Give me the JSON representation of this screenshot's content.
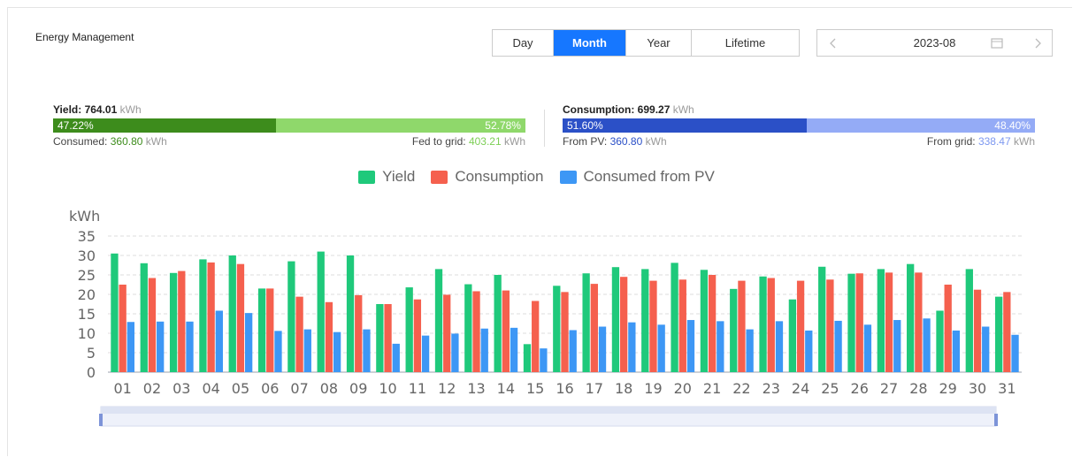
{
  "header": {
    "title": "Energy Management"
  },
  "tabs": [
    {
      "label": "Day"
    },
    {
      "label": "Month",
      "active": true
    },
    {
      "label": "Year"
    },
    {
      "label": "Lifetime"
    }
  ],
  "date": "2023-08",
  "yield": {
    "label": "Yield:",
    "value": "764.01",
    "unit": "kWh",
    "left_share": {
      "value": 47.22,
      "label": "47.22%"
    },
    "right_share": {
      "value": 52.78,
      "label": "52.78%"
    },
    "left": {
      "label": "Consumed:",
      "value": "360.80",
      "unit": "kWh"
    },
    "right": {
      "label": "Fed to grid:",
      "value": "403.21",
      "unit": "kWh"
    }
  },
  "consumption": {
    "label": "Consumption:",
    "value": "699.27",
    "unit": "kWh",
    "left_share": {
      "value": 51.6,
      "label": "51.60%"
    },
    "right_share": {
      "value": 48.4,
      "label": "48.40%"
    },
    "left": {
      "label": "From PV:",
      "value": "360.80",
      "unit": "kWh"
    },
    "right": {
      "label": "From grid:",
      "value": "338.47",
      "unit": "kWh"
    }
  },
  "chart_data": {
    "type": "bar",
    "y_label": "kWh",
    "categories": [
      "01",
      "02",
      "03",
      "04",
      "05",
      "06",
      "07",
      "08",
      "09",
      "10",
      "11",
      "12",
      "13",
      "14",
      "15",
      "16",
      "17",
      "18",
      "19",
      "20",
      "21",
      "22",
      "23",
      "24",
      "25",
      "26",
      "27",
      "28",
      "29",
      "30",
      "31"
    ],
    "series": [
      {
        "name": "Yield",
        "color": "#1fc97b",
        "values": [
          30.5,
          28,
          25.5,
          29,
          30,
          21.5,
          28.5,
          31,
          30,
          17.5,
          21.8,
          26.5,
          22.6,
          25,
          7.2,
          22.2,
          25.4,
          27,
          26.5,
          28.1,
          26.3,
          21.4,
          24.6,
          18.7,
          27.1,
          25.3,
          26.5,
          27.8,
          15.8,
          26.5,
          19.4
        ]
      },
      {
        "name": "Consumption",
        "color": "#f5604e",
        "values": [
          22.5,
          24.2,
          26,
          28.2,
          27.8,
          21.5,
          19.4,
          18,
          19.8,
          17.5,
          18.7,
          19.9,
          20.8,
          21,
          18.3,
          20.6,
          22.7,
          24.5,
          23.5,
          23.8,
          25,
          23.5,
          24.2,
          23.5,
          23.8,
          25.4,
          25.6,
          25.6,
          22.5,
          21.2,
          20.6
        ]
      },
      {
        "name": "Consumed from PV",
        "color": "#3d97f5",
        "values": [
          12.9,
          13,
          13,
          15.8,
          15.2,
          10.6,
          11,
          10.3,
          11,
          7.3,
          9.4,
          9.9,
          11.2,
          11.4,
          6.1,
          10.8,
          11.7,
          12.8,
          12.2,
          13.4,
          13.1,
          11,
          13.1,
          10.7,
          13.2,
          12.2,
          13.4,
          13.8,
          10.7,
          11.7,
          9.6
        ]
      }
    ],
    "ylim": [
      0,
      35
    ],
    "yticks": [
      0,
      5,
      10,
      15,
      20,
      25,
      30,
      35
    ],
    "grid": true
  }
}
